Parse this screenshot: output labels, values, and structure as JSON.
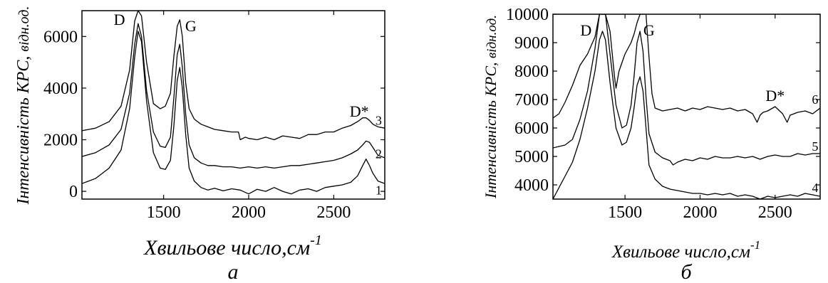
{
  "chart_data": [
    {
      "type": "line",
      "panel_label": "а",
      "xlabel_main": "Хвильове число,см",
      "xlabel_sup": "-1",
      "ylabel_main": "Інтенсивність КРС, ",
      "ylabel_italic": "відн.од.",
      "xlim": [
        1020,
        2800
      ],
      "ylim": [
        -300,
        7000
      ],
      "xticks": [
        1500,
        2000,
        2500
      ],
      "xtick_labels": [
        "1500",
        "2000",
        "2500"
      ],
      "yticks": [
        0,
        2000,
        4000,
        6000
      ],
      "ytick_labels": [
        "0",
        "2000",
        "4000",
        "6000"
      ],
      "peak_labels": [
        {
          "text": "D",
          "x": 1240,
          "y": 6450
        },
        {
          "text": "G",
          "x": 1660,
          "y": 6200
        },
        {
          "text": "D*",
          "x": 2650,
          "y": 2900
        }
      ],
      "series": [
        {
          "name": "1",
          "label_x": 2745,
          "label_y": 50,
          "x": [
            1020,
            1100,
            1180,
            1250,
            1300,
            1330,
            1350,
            1370,
            1400,
            1440,
            1480,
            1510,
            1540,
            1560,
            1580,
            1595,
            1610,
            1630,
            1650,
            1680,
            1720,
            1760,
            1800,
            1850,
            1900,
            1950,
            2000,
            2050,
            2100,
            2150,
            2200,
            2250,
            2300,
            2350,
            2400,
            2450,
            2500,
            2550,
            2600,
            2640,
            2670,
            2690,
            2710,
            2730,
            2760,
            2800
          ],
          "y": [
            300,
            500,
            900,
            1600,
            3200,
            5200,
            6200,
            5800,
            3500,
            1500,
            900,
            850,
            1200,
            2500,
            4300,
            4800,
            4000,
            2200,
            900,
            400,
            150,
            50,
            120,
            20,
            100,
            50,
            -100,
            80,
            0,
            150,
            0,
            -100,
            50,
            100,
            0,
            150,
            200,
            250,
            350,
            600,
            1000,
            1250,
            1000,
            700,
            400,
            300
          ]
        },
        {
          "name": "2",
          "label_x": 2745,
          "label_y": 1450,
          "x": [
            1020,
            1100,
            1180,
            1250,
            1300,
            1330,
            1350,
            1370,
            1400,
            1440,
            1480,
            1510,
            1540,
            1560,
            1580,
            1595,
            1610,
            1630,
            1650,
            1680,
            1720,
            1760,
            1800,
            1850,
            1900,
            1950,
            2000,
            2050,
            2100,
            2150,
            2200,
            2250,
            2300,
            2350,
            2400,
            2450,
            2500,
            2550,
            2600,
            2640,
            2670,
            2690,
            2710,
            2730,
            2760,
            2800
          ],
          "y": [
            1350,
            1500,
            1800,
            2400,
            3800,
            5700,
            6500,
            6000,
            3900,
            2300,
            1750,
            1700,
            2100,
            3600,
            5300,
            5700,
            4800,
            3000,
            1800,
            1300,
            1100,
            1000,
            1000,
            950,
            950,
            900,
            950,
            900,
            950,
            900,
            950,
            1000,
            1000,
            1050,
            1100,
            1150,
            1200,
            1300,
            1450,
            1600,
            1800,
            1950,
            1900,
            1700,
            1400,
            1300
          ]
        },
        {
          "name": "3",
          "label_x": 2745,
          "label_y": 2750,
          "x": [
            1020,
            1100,
            1180,
            1250,
            1300,
            1330,
            1350,
            1370,
            1400,
            1440,
            1480,
            1510,
            1540,
            1560,
            1580,
            1595,
            1610,
            1630,
            1650,
            1680,
            1720,
            1760,
            1800,
            1850,
            1900,
            1940,
            1950,
            1980,
            2000,
            2050,
            2100,
            2150,
            2200,
            2250,
            2300,
            2350,
            2400,
            2450,
            2500,
            2550,
            2600,
            2640,
            2670,
            2690,
            2710,
            2730,
            2760,
            2800
          ],
          "y": [
            2350,
            2450,
            2700,
            3300,
            4700,
            6600,
            7000,
            6800,
            5000,
            3400,
            3200,
            3300,
            3800,
            5200,
            6400,
            6650,
            6000,
            4200,
            3200,
            2800,
            2600,
            2500,
            2400,
            2350,
            2300,
            2300,
            2000,
            2100,
            2050,
            2000,
            2100,
            2000,
            2150,
            2100,
            2050,
            2200,
            2200,
            2300,
            2300,
            2450,
            2550,
            2700,
            2850,
            2850,
            2750,
            2600,
            2500,
            2450
          ]
        }
      ]
    },
    {
      "type": "line",
      "panel_label": "б",
      "xlabel_main": "Хвильове число,см",
      "xlabel_sup": "-1",
      "ylabel_main": "Інтенсивність КРС, ",
      "ylabel_italic": "відн.од.",
      "xlim": [
        1020,
        2800
      ],
      "ylim": [
        3500,
        10000
      ],
      "xticks": [
        1500,
        2000,
        2500
      ],
      "xtick_labels": [
        "1500",
        "2000",
        "2500"
      ],
      "yticks": [
        4000,
        5000,
        6000,
        7000,
        8000,
        9000,
        10000
      ],
      "ytick_labels": [
        "4000",
        "5000",
        "6000",
        "7000",
        "8000",
        "9000",
        "10000"
      ],
      "peak_labels": [
        {
          "text": "D",
          "x": 1240,
          "y": 9250
        },
        {
          "text": "G",
          "x": 1660,
          "y": 9250
        },
        {
          "text": "D*",
          "x": 2500,
          "y": 6950
        }
      ],
      "series": [
        {
          "name": "4",
          "label_x": 2745,
          "label_y": 3900,
          "x": [
            1020,
            1060,
            1100,
            1150,
            1200,
            1250,
            1300,
            1330,
            1350,
            1370,
            1400,
            1440,
            1480,
            1510,
            1540,
            1560,
            1580,
            1600,
            1620,
            1640,
            1660,
            1700,
            1750,
            1800,
            1850,
            1900,
            1950,
            2000,
            2050,
            2100,
            2150,
            2200,
            2250,
            2300,
            2350,
            2400,
            2450,
            2500,
            2550,
            2600,
            2650,
            2700,
            2750,
            2800
          ],
          "y": [
            3500,
            3900,
            4300,
            4800,
            5600,
            6700,
            8000,
            9100,
            9400,
            9100,
            7600,
            6000,
            5400,
            5500,
            6000,
            6700,
            7500,
            7800,
            7300,
            6000,
            4700,
            4200,
            3950,
            3850,
            3800,
            3750,
            3700,
            3700,
            3650,
            3700,
            3650,
            3700,
            3600,
            3650,
            3600,
            3500,
            3600,
            3550,
            3600,
            3650,
            3600,
            3700,
            3650,
            3600
          ]
        },
        {
          "name": "5",
          "label_x": 2745,
          "label_y": 5350,
          "x": [
            1020,
            1060,
            1100,
            1150,
            1200,
            1250,
            1300,
            1330,
            1350,
            1370,
            1400,
            1440,
            1480,
            1510,
            1540,
            1560,
            1580,
            1600,
            1620,
            1640,
            1660,
            1700,
            1750,
            1800,
            1820,
            1850,
            1900,
            1950,
            2000,
            2050,
            2100,
            2150,
            2200,
            2250,
            2300,
            2350,
            2400,
            2450,
            2500,
            2550,
            2600,
            2650,
            2700,
            2750,
            2800
          ],
          "y": [
            5300,
            5350,
            5400,
            5600,
            6300,
            7300,
            8800,
            10000,
            10000,
            10000,
            8600,
            6800,
            6000,
            6100,
            6800,
            7800,
            9000,
            9400,
            8700,
            7100,
            5800,
            5150,
            4950,
            4850,
            4700,
            4800,
            4900,
            4850,
            4950,
            4900,
            5000,
            4950,
            4950,
            5000,
            4950,
            5000,
            4900,
            5000,
            5050,
            5000,
            5000,
            5100,
            5050,
            5100,
            5100
          ]
        },
        {
          "name": "6",
          "label_x": 2745,
          "label_y": 7000,
          "x": [
            1020,
            1060,
            1100,
            1150,
            1200,
            1250,
            1300,
            1330,
            1350,
            1370,
            1400,
            1430,
            1440,
            1460,
            1500,
            1540,
            1560,
            1580,
            1600,
            1620,
            1640,
            1660,
            1680,
            1700,
            1750,
            1800,
            1850,
            1900,
            1950,
            2000,
            2050,
            2100,
            2150,
            2200,
            2250,
            2300,
            2350,
            2380,
            2400,
            2420,
            2450,
            2500,
            2550,
            2580,
            2600,
            2650,
            2700,
            2750,
            2800
          ],
          "y": [
            6350,
            6500,
            6900,
            7500,
            8200,
            8600,
            9200,
            10000,
            10000,
            10000,
            9400,
            7800,
            7400,
            8000,
            8600,
            9000,
            9300,
            9700,
            10000,
            10000,
            10000,
            8500,
            7200,
            6700,
            6600,
            6650,
            6700,
            6600,
            6700,
            6650,
            6750,
            6700,
            6650,
            6700,
            6600,
            6650,
            6500,
            6200,
            6450,
            6550,
            6600,
            6750,
            6500,
            6200,
            6450,
            6550,
            6600,
            6500,
            6700
          ]
        }
      ]
    }
  ]
}
